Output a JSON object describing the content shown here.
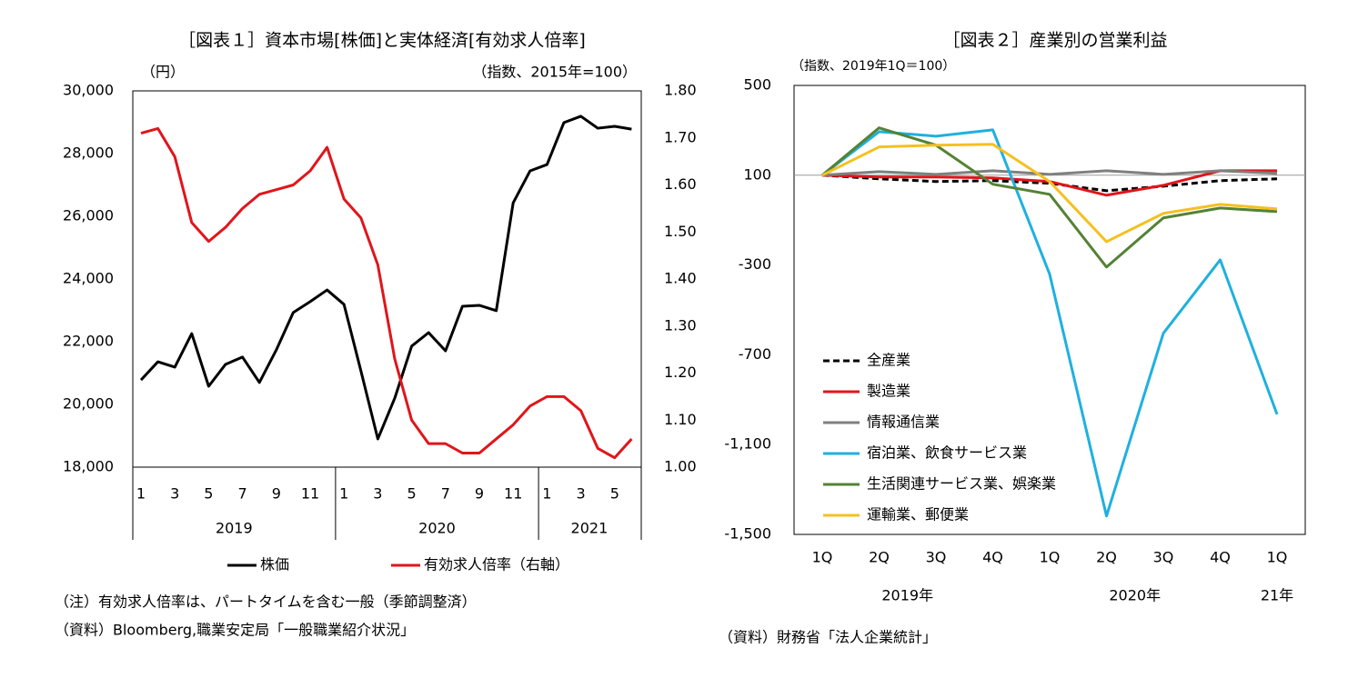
{
  "chart_data": [
    {
      "type": "line",
      "title": "［図表１］資本市場[株価]と実体経済[有効求人倍率]",
      "ylabel": "（円）",
      "y2label": "（指数、2015年=100）",
      "categories": [
        "1",
        null,
        "3",
        null,
        "5",
        null,
        "7",
        null,
        "9",
        null,
        "11",
        null,
        "1",
        null,
        "3",
        null,
        "5",
        null,
        "7",
        null,
        "9",
        null,
        "11",
        null,
        "1",
        null,
        "3",
        null,
        "5",
        null
      ],
      "groups": [
        "2019",
        "2020",
        "2021"
      ],
      "series": [
        {
          "name": "株価",
          "color": "#000000",
          "values": [
            20780,
            21360,
            21190,
            22260,
            20580,
            21280,
            21510,
            20700,
            21740,
            22930,
            23280,
            23650,
            23190,
            21070,
            18900,
            20200,
            21860,
            22290,
            21710,
            23130,
            23160,
            22990,
            26430,
            27450,
            27650,
            28990,
            29190,
            28810,
            28870,
            28780
          ]
        },
        {
          "name": "有効求人倍率（右軸）",
          "color": "#e0151b",
          "axis": "y2",
          "values": [
            1.71,
            1.72,
            1.66,
            1.52,
            1.48,
            1.51,
            1.55,
            1.58,
            1.59,
            1.6,
            1.63,
            1.68,
            1.57,
            1.53,
            1.43,
            1.23,
            1.1,
            1.05,
            1.05,
            1.03,
            1.03,
            1.06,
            1.09,
            1.13,
            1.15,
            1.15,
            1.12,
            1.04,
            1.02,
            1.06
          ]
        }
      ],
      "ylim": [
        18000,
        30000
      ],
      "yticks": [
        {
          "value": 18000,
          "label": "18,000"
        },
        {
          "value": 20000,
          "label": "20,000"
        },
        {
          "value": 22000,
          "label": "22,000"
        },
        {
          "value": 24000,
          "label": "24,000"
        },
        {
          "value": 26000,
          "label": "26,000"
        },
        {
          "value": 28000,
          "label": "28,000"
        },
        {
          "value": 30000,
          "label": "30,000"
        }
      ],
      "y2lim": [
        1,
        1.8
      ],
      "y2ticks": [
        {
          "value": 1,
          "label": "1.00"
        },
        {
          "value": 1.1,
          "label": "1.10"
        },
        {
          "value": 1.2,
          "label": "1.20"
        },
        {
          "value": 1.3,
          "label": "1.30"
        },
        {
          "value": 1.4,
          "label": "1.40"
        },
        {
          "value": 1.5,
          "label": "1.50"
        },
        {
          "value": 1.6,
          "label": "1.60"
        },
        {
          "value": 1.7,
          "label": "1.70"
        },
        {
          "value": 1.8,
          "label": "1.80"
        }
      ],
      "notes": [
        "（注）有効求人倍率は、パートタイムを含む一般（季節調整済）",
        "（資料）Bloomberg,職業安定局「一般職業紹介状況」"
      ]
    },
    {
      "type": "line",
      "title": "［図表２］産業別の営業利益",
      "ylabel": "（指数、2019年1Q＝100）",
      "categories": [
        "1Q",
        "2Q",
        "3Q",
        "4Q",
        "1Q",
        "2Q",
        "3Q",
        "4Q",
        "1Q"
      ],
      "groups": [
        "2019年",
        "2020年",
        "21年"
      ],
      "series": [
        {
          "name": "全産業",
          "color": "#000000",
          "dashed": true,
          "values": [
            100,
            84,
            72,
            76,
            64,
            31,
            51,
            76,
            84
          ]
        },
        {
          "name": "製造業",
          "color": "#e0151b",
          "values": [
            100,
            92,
            92,
            88,
            72,
            11,
            55,
            120,
            120
          ]
        },
        {
          "name": "情報通信業",
          "color": "#7f7f7f",
          "values": [
            100,
            116,
            104,
            120,
            104,
            120,
            104,
            120,
            108
          ]
        },
        {
          "name": "宿泊業、飲食サービス業",
          "color": "#1fb0e0",
          "values": [
            100,
            294,
            274,
            302,
            -341,
            -1418,
            -604,
            -277,
            -965
          ]
        },
        {
          "name": "生活関連サービス業、娯楽業",
          "color": "#548235",
          "values": [
            100,
            311,
            234,
            60,
            15,
            -309,
            -90,
            -46,
            -62
          ]
        },
        {
          "name": "運輸業、郵便業",
          "color": "#f5c020",
          "values": [
            100,
            226,
            234,
            238,
            72,
            -196,
            -70,
            -30,
            -50
          ]
        }
      ],
      "ylim": [
        -1500,
        500
      ],
      "yticks": [
        {
          "value": -1500,
          "label": "-1,500"
        },
        {
          "value": -1100,
          "label": "-1,100"
        },
        -700,
        -300,
        100,
        500
      ],
      "baseline": 100,
      "notes": [
        "（資料）財務省「法人企業統計」"
      ]
    }
  ]
}
